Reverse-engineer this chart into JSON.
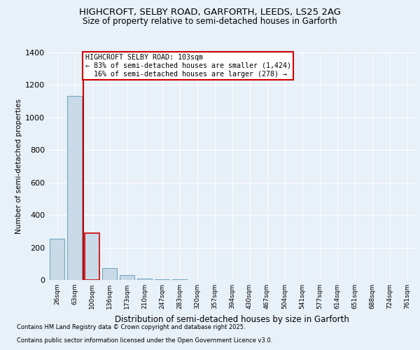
{
  "title1": "HIGHCROFT, SELBY ROAD, GARFORTH, LEEDS, LS25 2AG",
  "title2": "Size of property relative to semi-detached houses in Garforth",
  "xlabel": "Distribution of semi-detached houses by size in Garforth",
  "ylabel": "Number of semi-detached properties",
  "bin_labels": [
    "26sqm",
    "63sqm",
    "100sqm",
    "136sqm",
    "173sqm",
    "210sqm",
    "247sqm",
    "283sqm",
    "320sqm",
    "357sqm",
    "394sqm",
    "430sqm",
    "467sqm",
    "504sqm",
    "541sqm",
    "577sqm",
    "614sqm",
    "651sqm",
    "688sqm",
    "724sqm",
    "761sqm"
  ],
  "bar_values": [
    255,
    1135,
    290,
    75,
    30,
    10,
    5,
    3,
    2,
    2,
    1,
    1,
    1,
    0,
    0,
    0,
    0,
    0,
    0,
    0,
    0
  ],
  "bar_color": "#c8d9e8",
  "bar_edge_color": "#5a9ab5",
  "highlight_index": 2,
  "highlight_edge_color": "#cc0000",
  "red_line_x": 1.5,
  "annotation_text": "HIGHCROFT SELBY ROAD: 103sqm\n← 83% of semi-detached houses are smaller (1,424)\n  16% of semi-detached houses are larger (278) →",
  "annotation_box_color": "#ffffff",
  "annotation_box_edge_color": "#cc0000",
  "ylim": [
    0,
    1400
  ],
  "yticks": [
    0,
    200,
    400,
    600,
    800,
    1000,
    1200,
    1400
  ],
  "footer1": "Contains HM Land Registry data © Crown copyright and database right 2025.",
  "footer2": "Contains public sector information licensed under the Open Government Licence v3.0.",
  "background_color": "#e8f0f8",
  "grid_color": "#ffffff"
}
